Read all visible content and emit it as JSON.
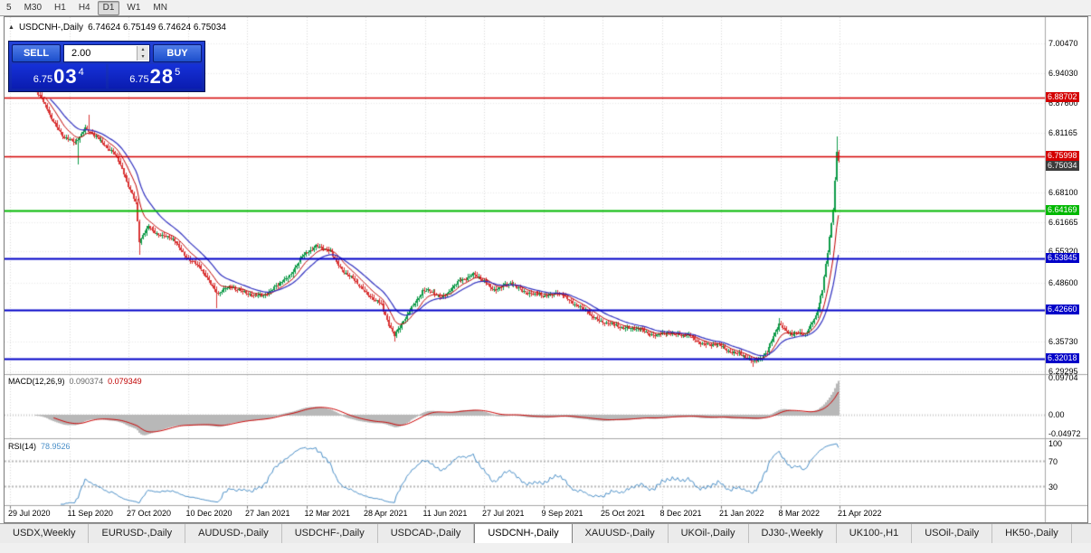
{
  "toolbar": {
    "timeframes": [
      {
        "label": "5",
        "active": false
      },
      {
        "label": "M30",
        "active": false
      },
      {
        "label": "H1",
        "active": false
      },
      {
        "label": "H4",
        "active": false
      },
      {
        "label": "D1",
        "active": true
      },
      {
        "label": "W1",
        "active": false
      },
      {
        "label": "MN",
        "active": false
      }
    ]
  },
  "chart": {
    "collapse_icon": "▲",
    "symbol": "USDCNH-,Daily",
    "ohlc": "6.74624 6.75149 6.74624 6.75034",
    "price_axis": [
      "7.00470",
      "6.94030",
      "6.87600",
      "6.81165",
      "6.68100",
      "6.61665",
      "6.55320",
      "6.48600",
      "6.35730",
      "6.29295"
    ],
    "levels": [
      {
        "value": "6.88702",
        "price": 6.88702,
        "color": "#d40000",
        "kind": "hline"
      },
      {
        "value": "6.75998",
        "price": 6.75998,
        "color": "#d40000",
        "kind": "hline"
      },
      {
        "value": "6.75034",
        "price": 6.75034,
        "color": "#3c3c3c",
        "kind": "price-marker"
      },
      {
        "value": "6.64169",
        "price": 6.64169,
        "color": "#00b800",
        "kind": "hline"
      },
      {
        "value": "6.53845",
        "price": 6.53845,
        "color": "#0000c8",
        "kind": "hline"
      },
      {
        "value": "6.42660",
        "price": 6.4266,
        "color": "#0000c8",
        "kind": "hline"
      },
      {
        "value": "6.32018",
        "price": 6.32018,
        "color": "#0000c8",
        "kind": "hline"
      }
    ],
    "dates": [
      "29 Jul 2020",
      "11 Sep 2020",
      "27 Oct 2020",
      "10 Dec 2020",
      "27 Jan 2021",
      "12 Mar 2021",
      "28 Apr 2021",
      "11 Jun 2021",
      "27 Jul 2021",
      "9 Sep 2021",
      "25 Oct 2021",
      "8 Dec 2021",
      "21 Jan 2022",
      "8 Mar 2022",
      "21 Apr 2022"
    ]
  },
  "trade_panel": {
    "sell_label": "SELL",
    "buy_label": "BUY",
    "volume": "2.00",
    "sell_price": {
      "prefix": "6.75",
      "big": "03",
      "sup": "4"
    },
    "buy_price": {
      "prefix": "6.75",
      "big": "28",
      "sup": "5"
    }
  },
  "macd": {
    "name": "MACD(12,26,9)",
    "value_main": "0.090374",
    "value_signal": "0.079349",
    "axis": [
      "0.09704",
      "0.00",
      "-0.04972"
    ],
    "axis_values": [
      0.09704,
      0,
      -0.04972
    ]
  },
  "rsi": {
    "name": "RSI(14)",
    "value": "78.9526",
    "axis": [
      "100",
      "70",
      "30"
    ],
    "axis_values": [
      100,
      70,
      30
    ],
    "levels": [
      70,
      30
    ]
  },
  "tabs": {
    "active_index": 5,
    "items": [
      "USDX,Weekly",
      "EURUSD-,Daily",
      "AUDUSD-,Daily",
      "USDCHF-,Daily",
      "USDCAD-,Daily",
      "USDCNH-,Daily",
      "XAUUSD-,Daily",
      "UKOil-,Daily",
      "DJ30-,Weekly",
      "UK100-,H1",
      "USOil-,Daily",
      "HK50-,Daily"
    ]
  },
  "chart_data": {
    "type": "candlestick",
    "title": "USDCNH- Daily",
    "bar_count": 460,
    "noise_amp": 0.006,
    "last_close": 6.75034,
    "price_range": [
      6.289,
      7.058
    ],
    "anchors": [
      [
        0,
        6.9
      ],
      [
        16,
        6.8
      ],
      [
        22,
        6.788
      ],
      [
        28,
        6.822
      ],
      [
        31,
        6.81
      ],
      [
        44,
        6.772
      ],
      [
        52,
        6.705
      ],
      [
        57,
        6.662
      ],
      [
        59,
        6.576
      ],
      [
        64,
        6.604
      ],
      [
        78,
        6.578
      ],
      [
        88,
        6.536
      ],
      [
        97,
        6.503
      ],
      [
        104,
        6.462
      ],
      [
        112,
        6.478
      ],
      [
        124,
        6.455
      ],
      [
        134,
        6.466
      ],
      [
        145,
        6.502
      ],
      [
        152,
        6.54
      ],
      [
        160,
        6.568
      ],
      [
        168,
        6.552
      ],
      [
        178,
        6.502
      ],
      [
        190,
        6.462
      ],
      [
        198,
        6.432
      ],
      [
        205,
        6.372
      ],
      [
        212,
        6.412
      ],
      [
        221,
        6.47
      ],
      [
        232,
        6.455
      ],
      [
        243,
        6.49
      ],
      [
        250,
        6.506
      ],
      [
        261,
        6.472
      ],
      [
        272,
        6.482
      ],
      [
        285,
        6.457
      ],
      [
        298,
        6.462
      ],
      [
        308,
        6.442
      ],
      [
        318,
        6.412
      ],
      [
        330,
        6.392
      ],
      [
        342,
        6.386
      ],
      [
        355,
        6.372
      ],
      [
        368,
        6.376
      ],
      [
        380,
        6.356
      ],
      [
        392,
        6.347
      ],
      [
        404,
        6.326
      ],
      [
        410,
        6.316
      ],
      [
        418,
        6.331
      ],
      [
        425,
        6.398
      ],
      [
        432,
        6.372
      ],
      [
        440,
        6.376
      ],
      [
        446,
        6.412
      ],
      [
        450,
        6.47
      ],
      [
        453,
        6.552
      ],
      [
        456,
        6.648
      ],
      [
        458,
        6.772
      ],
      [
        459,
        6.75034
      ]
    ],
    "wick_events": [
      {
        "i": 24,
        "low": 6.742
      },
      {
        "i": 30,
        "high": 6.851
      },
      {
        "i": 59,
        "low": 6.546
      },
      {
        "i": 103,
        "low": 6.432
      },
      {
        "i": 205,
        "low": 6.356
      },
      {
        "i": 410,
        "low": 6.304
      },
      {
        "i": 425,
        "high": 6.408
      },
      {
        "i": 458,
        "high": 6.803
      }
    ],
    "ma_fast_period": 10,
    "ma_slow_period": 21,
    "macd_params": {
      "fast": 12,
      "slow": 26,
      "signal": 9
    },
    "rsi_period": 14,
    "colors": {
      "up": "#0f9b4a",
      "down": "#d93636",
      "ma_fast": "#c00000",
      "ma_slow": "#3030c0",
      "macd_hist": "#b8b8b8",
      "macd_signal": "#cc0000",
      "rsi_line": "#4a8fc8",
      "hline_red": "#d40000",
      "hline_green": "#00b800",
      "hline_blue": "#0000c8"
    }
  }
}
